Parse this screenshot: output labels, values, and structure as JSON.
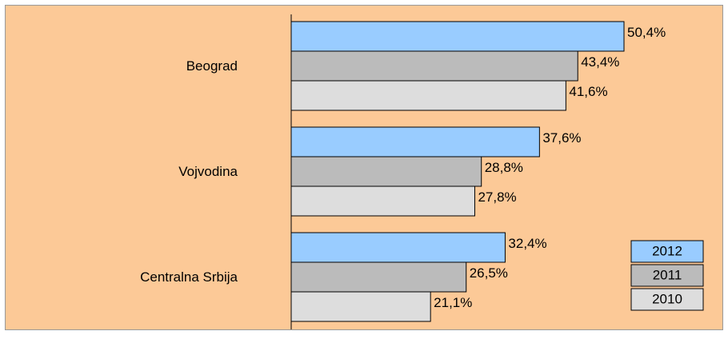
{
  "chart_data": {
    "type": "bar",
    "orientation": "horizontal",
    "categories": [
      "Beograd",
      "Vojvodina",
      "Centralna Srbija"
    ],
    "series": [
      {
        "name": "2012",
        "color": "#99ccff",
        "values": [
          50.4,
          37.6,
          32.4
        ],
        "value_labels": [
          "50,4%",
          "37,6%",
          "32,4%"
        ]
      },
      {
        "name": "2011",
        "color": "#bbbbbb",
        "values": [
          43.4,
          28.8,
          26.5
        ],
        "value_labels": [
          "43,4%",
          "28,8%",
          "26,5%"
        ]
      },
      {
        "name": "2010",
        "color": "#dddddd",
        "values": [
          41.6,
          27.8,
          21.1
        ],
        "value_labels": [
          "41,6%",
          "27,8%",
          "21,1%"
        ]
      }
    ],
    "legend": "lower right"
  }
}
